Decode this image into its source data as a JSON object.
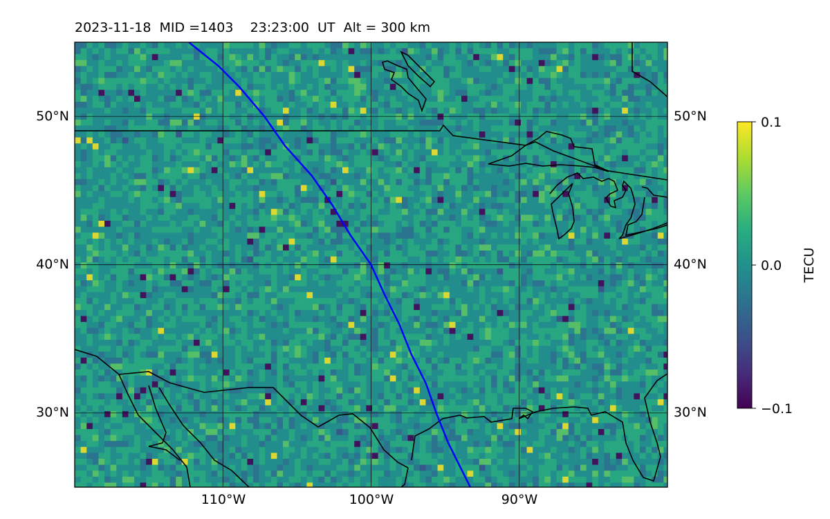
{
  "title": "2023-11-18  MID =1403    23:23:00  UT  Alt = 300 km",
  "map": {
    "projection": "equirectangular",
    "lon_range": [
      -120,
      -80
    ],
    "lat_range": [
      25,
      55
    ],
    "gridlines": true,
    "lat_ticks": [
      "50°N",
      "40°N",
      "30°N"
    ],
    "lon_ticks": [
      "110°W",
      "100°W",
      "90°W"
    ],
    "field": "TEC perturbation (noisy gridded field, viridis colormap)",
    "track_color": "#0000ff",
    "coastline_color": "#000000"
  },
  "colorbar": {
    "label": "TECU",
    "max_label": "0.1",
    "mid_label": "0.0",
    "min_label": "−0.1",
    "range": [
      -0.1,
      0.1
    ],
    "colormap": "viridis"
  },
  "chart_data": {
    "type": "heatmap",
    "title": "2023-11-18  MID =1403    23:23:00  UT  Alt = 300 km",
    "x": {
      "label": "",
      "range": [
        -120,
        -80
      ],
      "ticks": [
        "110°W",
        "100°W",
        "90°W"
      ]
    },
    "y": {
      "label": "",
      "range": [
        25,
        55
      ],
      "ticks": [
        "50°N",
        "40°N",
        "30°N"
      ]
    },
    "z": {
      "label": "TECU",
      "range": [
        -0.1,
        0.1
      ]
    },
    "overlays": [
      {
        "type": "line",
        "color": "#0000ff",
        "points": [
          [
            -112.3,
            55
          ],
          [
            -110.3,
            53.4
          ],
          [
            -108.9,
            52
          ],
          [
            -107.2,
            50
          ],
          [
            -105.8,
            48
          ],
          [
            -104.0,
            46
          ],
          [
            -102.6,
            44
          ],
          [
            -101.4,
            42
          ],
          [
            -100.0,
            40
          ],
          [
            -99.1,
            38
          ],
          [
            -98.1,
            36
          ],
          [
            -97.3,
            34
          ],
          [
            -96.3,
            32
          ],
          [
            -95.6,
            30
          ],
          [
            -94.8,
            28
          ],
          [
            -93.8,
            26
          ],
          [
            -93.3,
            25
          ]
        ]
      }
    ]
  }
}
